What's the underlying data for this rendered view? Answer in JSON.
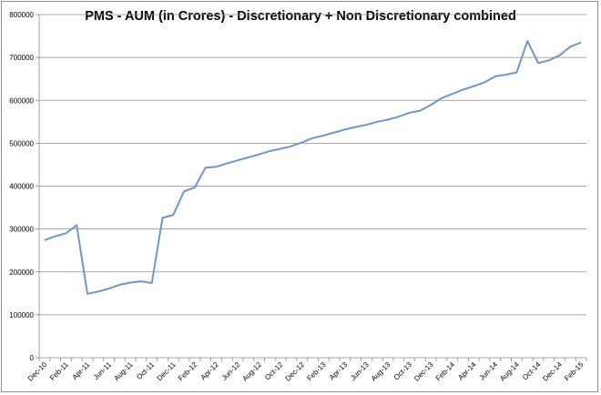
{
  "chart_data": {
    "type": "line",
    "title": "PMS - AUM (in Crores) - Discretionary + Non Discretionary combined",
    "xlabel": "",
    "ylabel": "",
    "ylim": [
      0,
      800000
    ],
    "y_ticks": [
      "0",
      "100000",
      "200000",
      "300000",
      "400000",
      "500000",
      "600000",
      "700000",
      "800000"
    ],
    "x_tick_labels": [
      "Dec-10",
      "Feb-11",
      "Apr-11",
      "Jun-11",
      "Aug-11",
      "Oct-11",
      "Dec-11",
      "Feb-12",
      "Apr-12",
      "Jun-12",
      "Aug-12",
      "Oct-12",
      "Dec-12",
      "Feb-13",
      "Apr-13",
      "Jun-13",
      "Aug-13",
      "Oct-13",
      "Dec-13",
      "Feb-14",
      "Apr-14",
      "Jun-14",
      "Aug-14",
      "Oct-14",
      "Dec-14",
      "Feb-15"
    ],
    "grid": "horizontal",
    "legend": "none",
    "series_color": "#6f97c8",
    "series": [
      {
        "values": [
          274000,
          283000,
          290000,
          309000,
          149000,
          154000,
          161000,
          170000,
          175000,
          178000,
          174000,
          326000,
          333000,
          388000,
          397000,
          443000,
          445000,
          453000,
          460000,
          467000,
          474000,
          482000,
          487000,
          493000,
          502000,
          512000,
          518000,
          525000,
          532000,
          538000,
          543000,
          550000,
          555000,
          562000,
          571000,
          576000,
          589000,
          605000,
          615000,
          625000,
          633000,
          642000,
          656000,
          660000,
          665000,
          738000,
          687000,
          693000,
          705000,
          725000,
          735000
        ]
      }
    ]
  }
}
